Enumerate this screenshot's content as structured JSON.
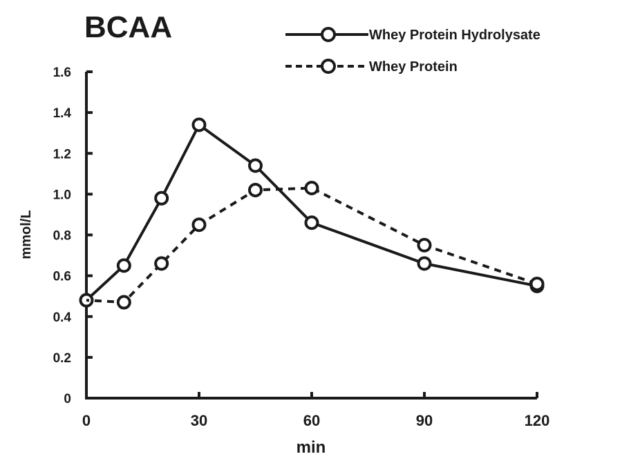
{
  "chart_data": {
    "type": "line",
    "title": "BCAA",
    "xlabel": "min",
    "ylabel": "mmol/L",
    "xlim": [
      0,
      120
    ],
    "ylim": [
      0,
      1.6
    ],
    "xticks": [
      "0",
      "30",
      "60",
      "90",
      "120"
    ],
    "yticks": [
      "0",
      "0.2",
      "0.4",
      "0.6",
      "0.8",
      "1.0",
      "1.2",
      "1.4",
      "1.6"
    ],
    "grid": false,
    "legend_position": "top-right",
    "series": [
      {
        "name": "Whey Protein Hydrolysate",
        "style": "solid",
        "color": "#1a1a1a",
        "x": [
          0,
          10,
          20,
          30,
          45,
          60,
          90,
          120
        ],
        "y": [
          0.48,
          0.65,
          0.98,
          1.34,
          1.14,
          0.86,
          0.66,
          0.55
        ]
      },
      {
        "name": "Whey Protein",
        "style": "dashed",
        "color": "#1a1a1a",
        "x": [
          0,
          10,
          20,
          30,
          45,
          60,
          90,
          120
        ],
        "y": [
          0.48,
          0.47,
          0.66,
          0.85,
          1.02,
          1.03,
          0.75,
          0.56
        ]
      }
    ]
  }
}
